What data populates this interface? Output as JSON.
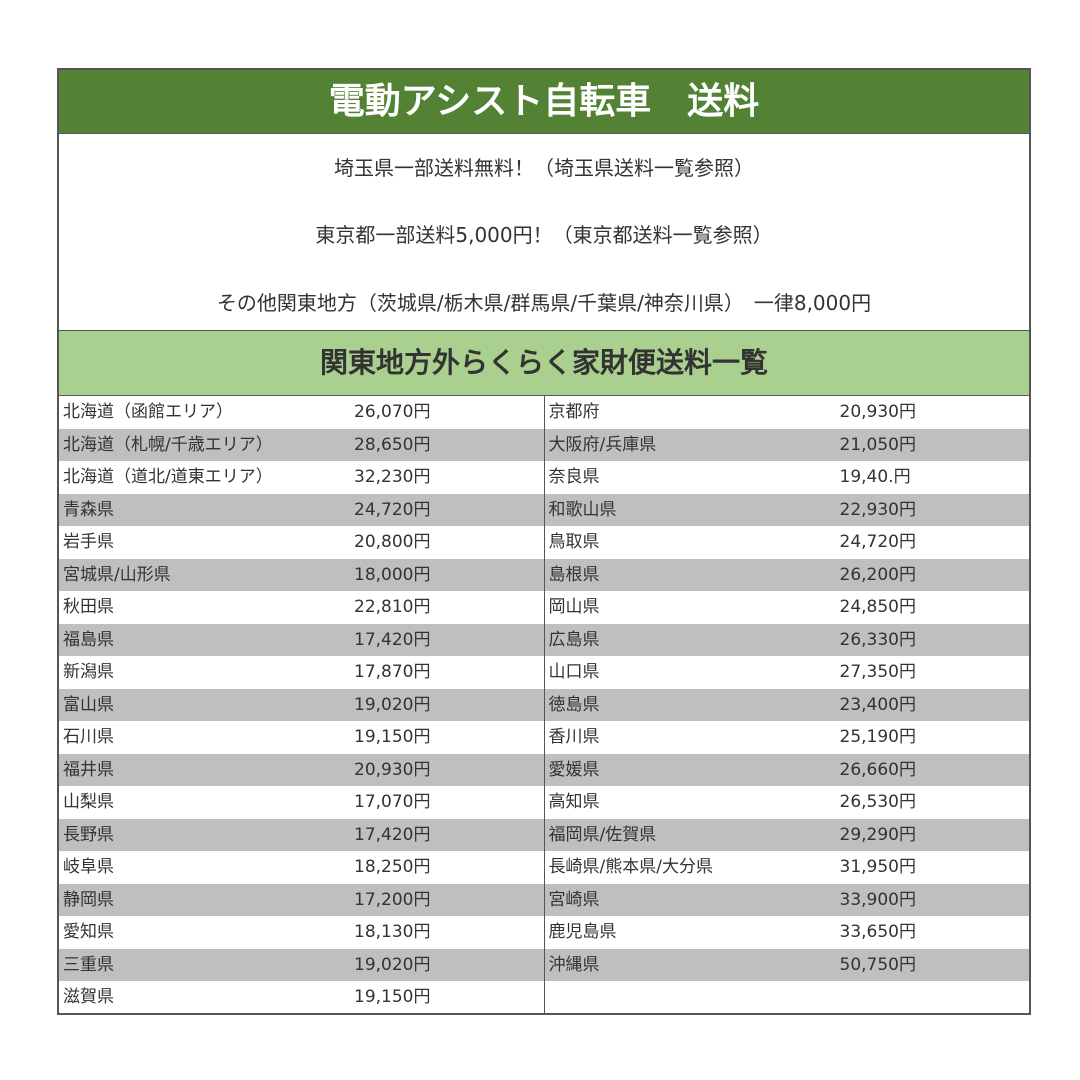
{
  "title": "電動アシスト自転車　送料",
  "info": [
    "埼玉県一部送料無料！（埼玉県送料一覧参照）",
    "東京都一部送料5,000円！（東京都送料一覧参照）",
    "その他関東地方（茨城県/栃木県/群馬県/千葉県/神奈川県）　一律8,000円"
  ],
  "subtitle": "関東地方外らくらく家財便送料一覧",
  "left": [
    {
      "name": "北海道（函館エリア）",
      "price": "26,070円"
    },
    {
      "name": "北海道（札幌/千歳エリア）",
      "price": "28,650円"
    },
    {
      "name": "北海道（道北/道東エリア）",
      "price": "32,230円"
    },
    {
      "name": "青森県",
      "price": "24,720円"
    },
    {
      "name": "岩手県",
      "price": "20,800円"
    },
    {
      "name": "宮城県/山形県",
      "price": "18,000円"
    },
    {
      "name": "秋田県",
      "price": "22,810円"
    },
    {
      "name": "福島県",
      "price": "17,420円"
    },
    {
      "name": "新潟県",
      "price": "17,870円"
    },
    {
      "name": "富山県",
      "price": "19,020円"
    },
    {
      "name": "石川県",
      "price": "19,150円"
    },
    {
      "name": "福井県",
      "price": "20,930円"
    },
    {
      "name": "山梨県",
      "price": "17,070円"
    },
    {
      "name": "長野県",
      "price": "17,420円"
    },
    {
      "name": "岐阜県",
      "price": "18,250円"
    },
    {
      "name": "静岡県",
      "price": "17,200円"
    },
    {
      "name": "愛知県",
      "price": "18,130円"
    },
    {
      "name": "三重県",
      "price": "19,020円"
    },
    {
      "name": "滋賀県",
      "price": "19,150円"
    }
  ],
  "right": [
    {
      "name": "京都府",
      "price": "20,930円"
    },
    {
      "name": "大阪府/兵庫県",
      "price": "21,050円"
    },
    {
      "name": "奈良県",
      "price": "19,40.円"
    },
    {
      "name": "和歌山県",
      "price": "22,930円"
    },
    {
      "name": "鳥取県",
      "price": "24,720円"
    },
    {
      "name": "島根県",
      "price": "26,200円"
    },
    {
      "name": "岡山県",
      "price": "24,850円"
    },
    {
      "name": "広島県",
      "price": "26,330円"
    },
    {
      "name": "山口県",
      "price": "27,350円"
    },
    {
      "name": "徳島県",
      "price": "23,400円"
    },
    {
      "name": "香川県",
      "price": "25,190円"
    },
    {
      "name": "愛媛県",
      "price": "26,660円"
    },
    {
      "name": "高知県",
      "price": "26,530円"
    },
    {
      "name": "福岡県/佐賀県",
      "price": "29,290円"
    },
    {
      "name": "長崎県/熊本県/大分県",
      "price": "31,950円"
    },
    {
      "name": "宮崎県",
      "price": "33,900円"
    },
    {
      "name": "鹿児島県",
      "price": "33,650円"
    },
    {
      "name": "沖縄県",
      "price": "50,750円"
    }
  ],
  "colors": {
    "title_bg": "#548235",
    "subtitle_bg": "#a9d08e",
    "alt_row": "#bfbfbf"
  }
}
